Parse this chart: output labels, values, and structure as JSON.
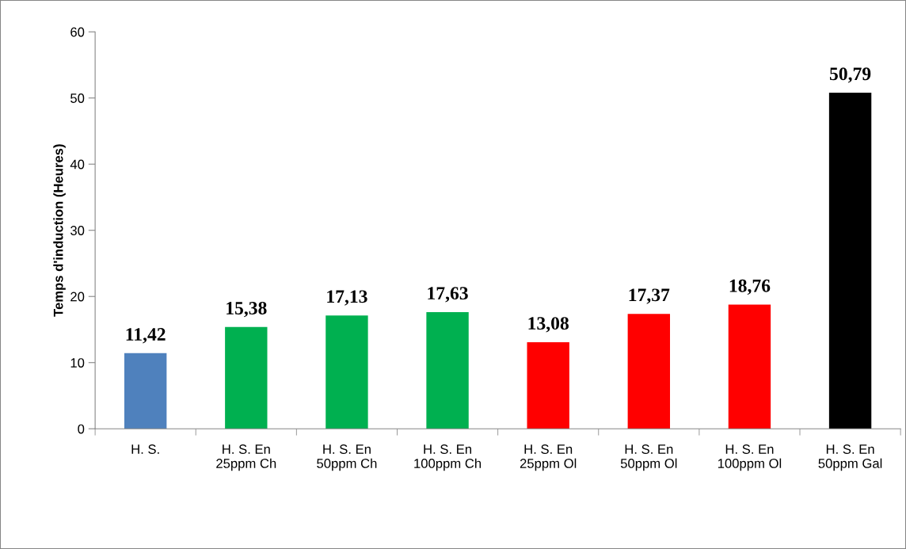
{
  "chart_data": {
    "type": "bar",
    "ylabel": "Temps d'induction (Heures)",
    "categories": [
      "H. S.",
      "H. S. En\n25ppm Ch",
      "H. S. En\n50ppm Ch",
      "H. S. En\n100ppm Ch",
      "H. S. En\n25ppm Ol",
      "H. S. En\n50ppm Ol",
      "H. S. En\n100ppm Ol",
      "H. S. En\n50ppm Gal"
    ],
    "values": [
      11.42,
      15.38,
      17.13,
      17.63,
      13.08,
      17.37,
      18.76,
      50.79
    ],
    "value_labels": [
      "11,42",
      "15,38",
      "17,13",
      "17,63",
      "13,08",
      "17,37",
      "18,76",
      "50,79"
    ],
    "colors": [
      "#4f81bd",
      "#00b050",
      "#00b050",
      "#00b050",
      "#ff0000",
      "#ff0000",
      "#ff0000",
      "#000000"
    ],
    "ylim": [
      0,
      60
    ],
    "yticks": [
      0,
      10,
      20,
      30,
      40,
      50,
      60
    ],
    "grid": false,
    "legend": false
  }
}
